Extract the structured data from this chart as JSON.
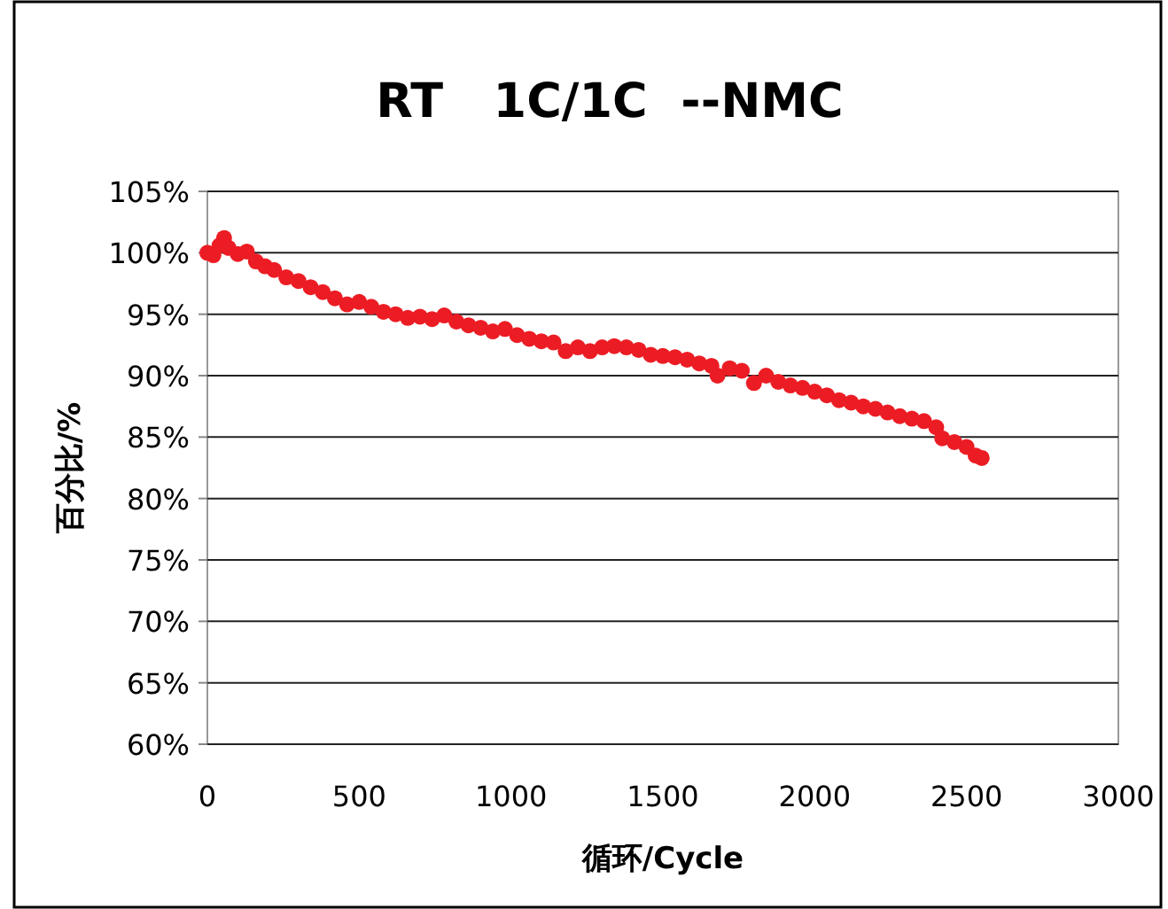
{
  "chart_data": {
    "type": "scatter",
    "title": "RT   1C/1C  --NMC",
    "xlabel": "循环/Cycle",
    "ylabel": "百分比/%",
    "xlim": [
      0,
      3000
    ],
    "xticks": [
      0,
      500,
      1000,
      1500,
      2000,
      2500,
      3000
    ],
    "ylim": [
      60,
      105
    ],
    "yticks": [
      {
        "value": 60,
        "label": "60%"
      },
      {
        "value": 65,
        "label": "65%"
      },
      {
        "value": 70,
        "label": "70%"
      },
      {
        "value": 75,
        "label": "75%"
      },
      {
        "value": 80,
        "label": "80%"
      },
      {
        "value": 85,
        "label": "85%"
      },
      {
        "value": 90,
        "label": "90%"
      },
      {
        "value": 95,
        "label": "95%"
      },
      {
        "value": 100,
        "label": "100%"
      },
      {
        "value": 105,
        "label": "105%"
      }
    ],
    "grid": "y",
    "marker": "circle",
    "series": [
      {
        "color": "#ec1c24",
        "x": [
          0,
          20,
          40,
          55,
          70,
          100,
          130,
          160,
          190,
          220,
          260,
          300,
          340,
          380,
          420,
          460,
          500,
          540,
          580,
          620,
          660,
          700,
          740,
          780,
          820,
          860,
          900,
          940,
          980,
          1020,
          1060,
          1100,
          1140,
          1180,
          1220,
          1260,
          1300,
          1340,
          1380,
          1420,
          1460,
          1500,
          1540,
          1580,
          1620,
          1660,
          1680,
          1720,
          1760,
          1800,
          1840,
          1880,
          1920,
          1960,
          2000,
          2040,
          2080,
          2120,
          2160,
          2200,
          2240,
          2280,
          2320,
          2360,
          2400,
          2420,
          2460,
          2500,
          2530,
          2550
        ],
        "values": [
          100,
          99.8,
          100.6,
          101.2,
          100.4,
          99.9,
          100.1,
          99.3,
          98.9,
          98.6,
          98.0,
          97.7,
          97.2,
          96.8,
          96.3,
          95.8,
          96.0,
          95.6,
          95.2,
          95.0,
          94.7,
          94.8,
          94.6,
          94.9,
          94.4,
          94.1,
          93.9,
          93.6,
          93.8,
          93.3,
          93.0,
          92.8,
          92.7,
          92.0,
          92.3,
          92.0,
          92.3,
          92.4,
          92.3,
          92.1,
          91.7,
          91.6,
          91.5,
          91.3,
          91.0,
          90.8,
          90.0,
          90.6,
          90.4,
          89.4,
          90.0,
          89.5,
          89.2,
          89.0,
          88.7,
          88.4,
          88.0,
          87.8,
          87.5,
          87.3,
          87.0,
          86.7,
          86.5,
          86.3,
          85.8,
          84.9,
          84.6,
          84.2,
          83.5,
          83.3
        ]
      }
    ]
  }
}
